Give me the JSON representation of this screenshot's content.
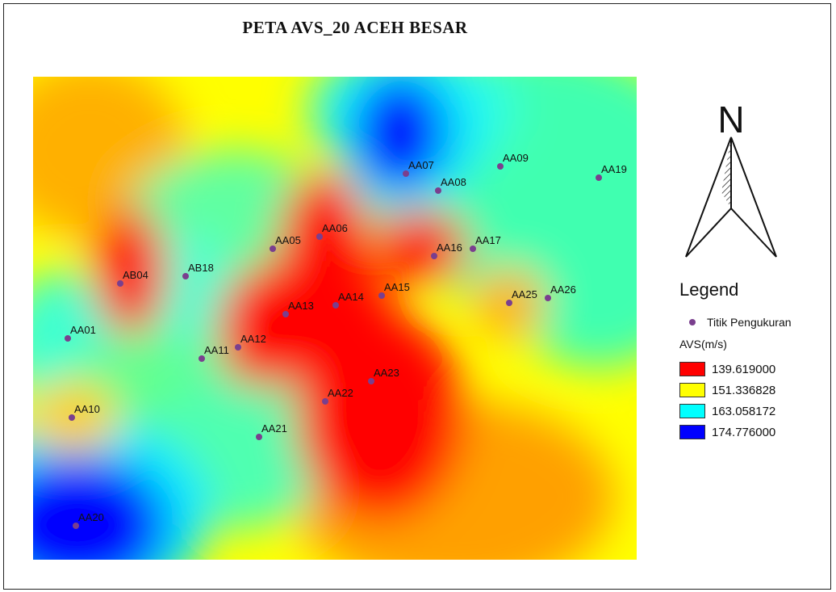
{
  "title": "PETA AVS_20 ACEH BESAR",
  "north_label": "N",
  "legend": {
    "title": "Legend",
    "point_label": "Titik Pengukuran",
    "point_color": "#7a3f8e",
    "field_label": "AVS(m/s)",
    "classes": [
      {
        "value": "139.619000",
        "color": "#ff0000"
      },
      {
        "value": "151.336828",
        "color": "#ffff00"
      },
      {
        "value": "163.058172",
        "color": "#00ffff"
      },
      {
        "value": "174.776000",
        "color": "#0000ff"
      }
    ]
  },
  "points": [
    {
      "id": "AA07"
    },
    {
      "id": "AA08"
    },
    {
      "id": "AA09"
    },
    {
      "id": "AA19"
    },
    {
      "id": "AA05"
    },
    {
      "id": "AA06"
    },
    {
      "id": "AA16"
    },
    {
      "id": "AA17"
    },
    {
      "id": "AB04"
    },
    {
      "id": "AB18"
    },
    {
      "id": "AA15"
    },
    {
      "id": "AA14"
    },
    {
      "id": "AA13"
    },
    {
      "id": "AA25"
    },
    {
      "id": "AA26"
    },
    {
      "id": "AA01"
    },
    {
      "id": "AA12"
    },
    {
      "id": "AA11"
    },
    {
      "id": "AA23"
    },
    {
      "id": "AA22"
    },
    {
      "id": "AA10"
    },
    {
      "id": "AA21"
    },
    {
      "id": "AA20"
    }
  ]
}
